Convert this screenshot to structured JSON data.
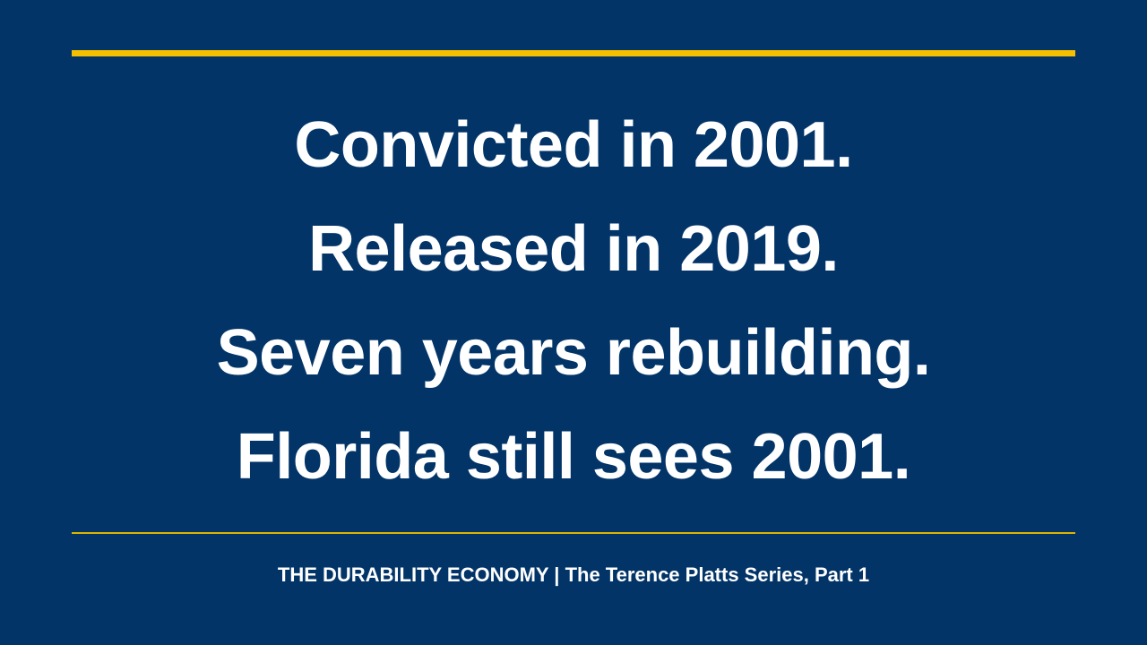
{
  "headline": {
    "lines": [
      "Convicted in 2001.",
      "Released in 2019.",
      "Seven years rebuilding.",
      "Florida still sees 2001."
    ]
  },
  "footer": {
    "text": "THE DURABILITY ECONOMY | The Terence Platts Series, Part 1"
  }
}
